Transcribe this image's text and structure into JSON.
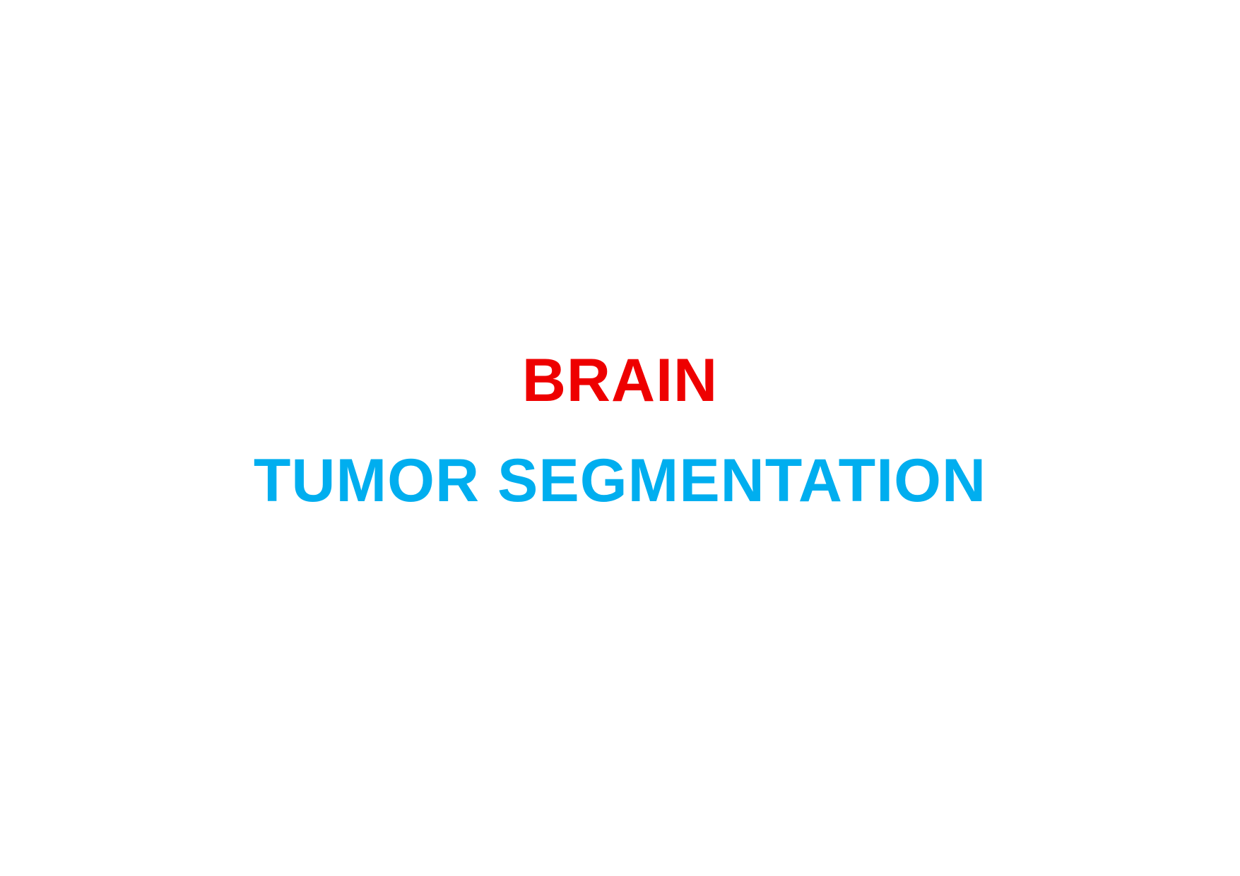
{
  "title": {
    "line1": "BRAIN",
    "line2": "TUMOR SEGMENTATION"
  },
  "colors": {
    "background": "#ffffff",
    "line1": "#ee0000",
    "line2": "#00aeef"
  }
}
